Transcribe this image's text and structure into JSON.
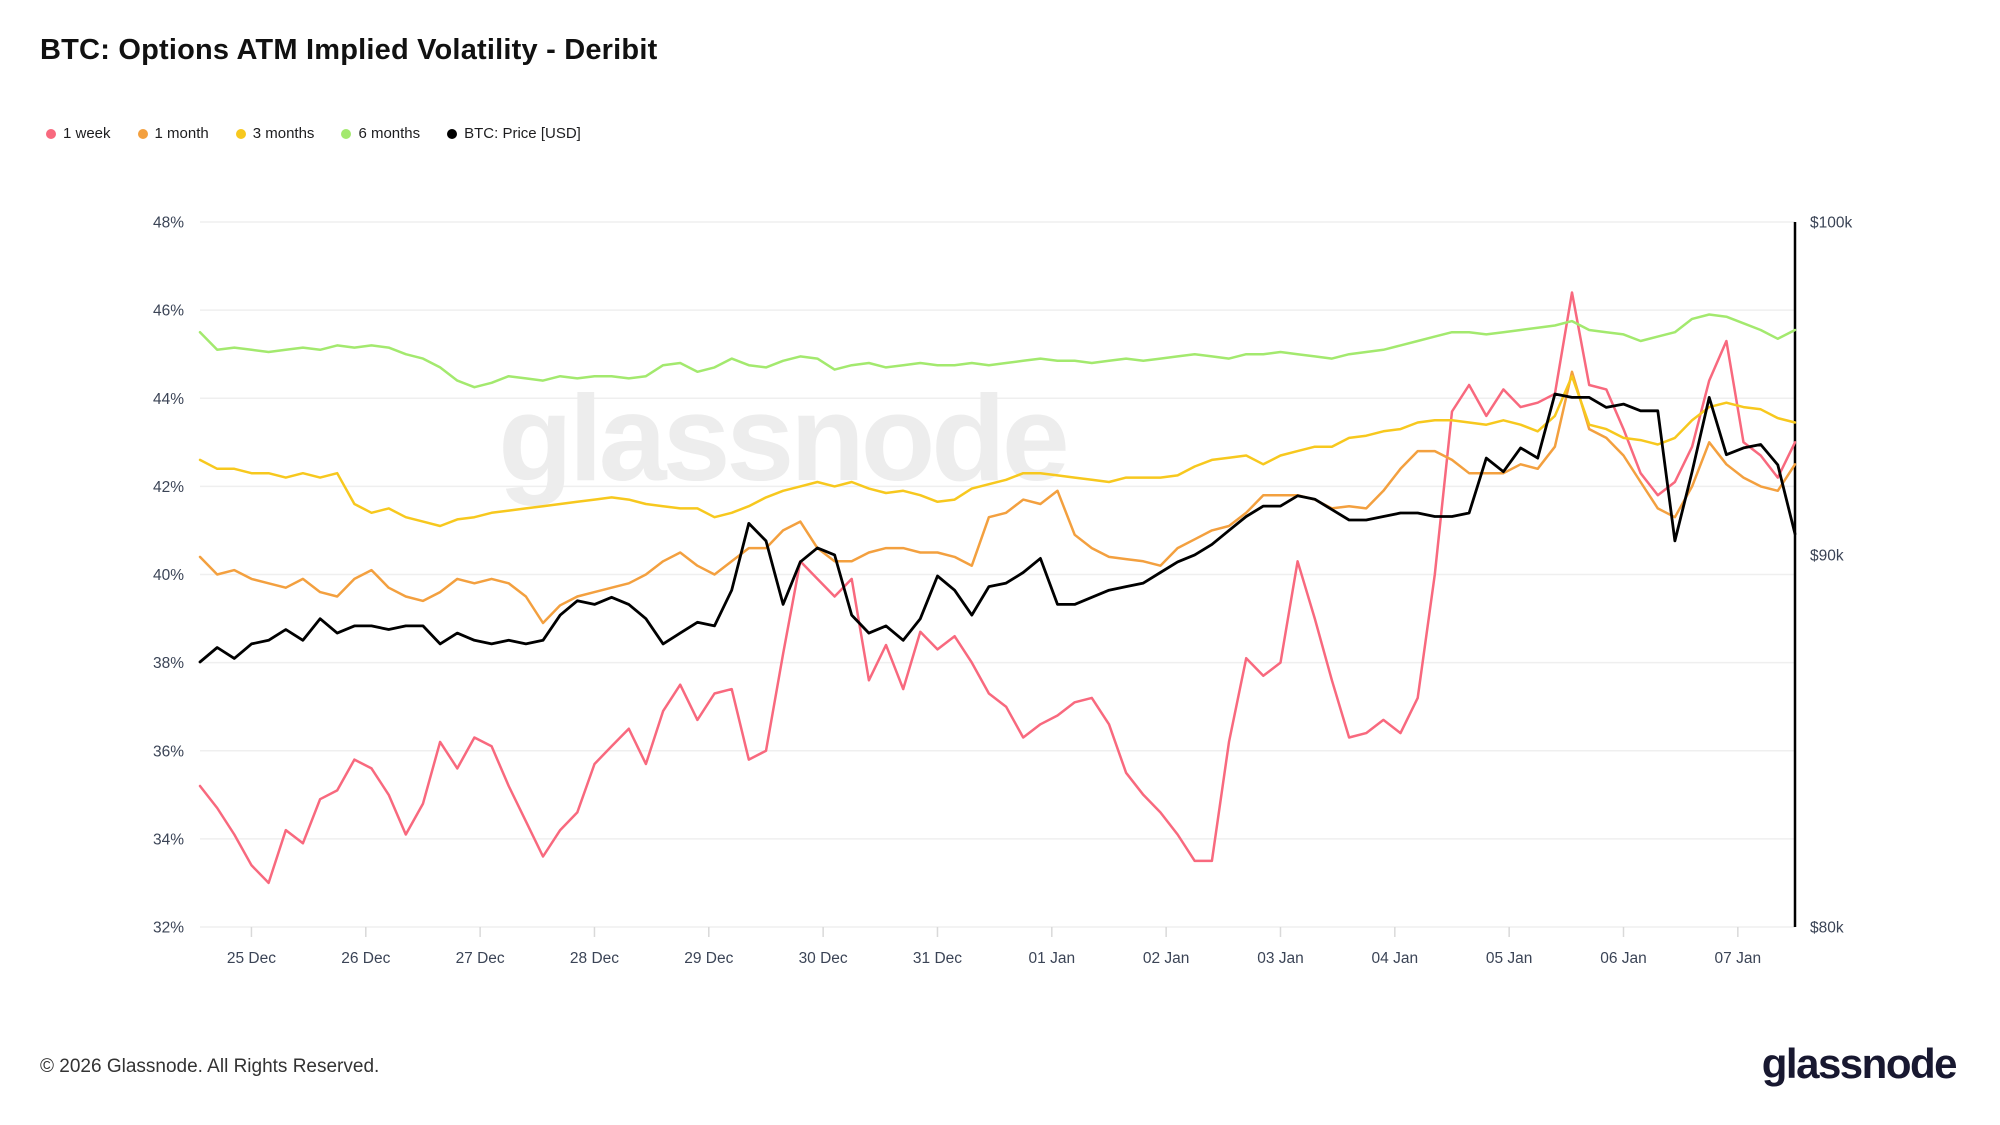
{
  "title": "BTC: Options ATM Implied Volatility - Deribit",
  "watermark": "glassnode",
  "footer": {
    "copyright": "© 2026 Glassnode. All Rights Reserved.",
    "logo_text": "glassnode"
  },
  "legend": [
    {
      "label": "1 week",
      "color": "#F8697E"
    },
    {
      "label": "1 month",
      "color": "#F3A03F"
    },
    {
      "label": "3 months",
      "color": "#F7C81E"
    },
    {
      "label": "6 months",
      "color": "#A3E96E"
    },
    {
      "label": "BTC: Price [USD]",
      "color": "#000000"
    }
  ],
  "chart_data": {
    "type": "line",
    "title": "BTC: Options ATM Implied Volatility - Deribit",
    "grid": true,
    "legend_position": "top-left",
    "x_unit": "days since 25 Dec",
    "x_range": [
      -0.45,
      13.5
    ],
    "x_tick_positions": [
      0,
      1,
      2,
      3,
      4,
      5,
      6,
      7,
      8,
      9,
      10,
      11,
      12,
      13
    ],
    "x_tick_labels": [
      "25 Dec",
      "26 Dec",
      "27 Dec",
      "28 Dec",
      "29 Dec",
      "30 Dec",
      "31 Dec",
      "01 Jan",
      "02 Jan",
      "03 Jan",
      "04 Jan",
      "05 Jan",
      "06 Jan",
      "07 Jan"
    ],
    "left_axis": {
      "min": 32,
      "max": 48,
      "tick_step": 2,
      "tick_suffix": "%"
    },
    "right_axis": {
      "min": 80,
      "max": 100,
      "scale": "log",
      "ticks": [
        {
          "value": 100,
          "label": "$100k"
        },
        {
          "value": 90,
          "label": "$90k"
        },
        {
          "value": 80,
          "label": "$80k"
        }
      ]
    },
    "x": [
      -0.45,
      -0.3,
      -0.15,
      0.0,
      0.15,
      0.3,
      0.45,
      0.6,
      0.75,
      0.9,
      1.05,
      1.2,
      1.35,
      1.5,
      1.65,
      1.8,
      1.95,
      2.1,
      2.25,
      2.4,
      2.55,
      2.7,
      2.85,
      3.0,
      3.15,
      3.3,
      3.45,
      3.6,
      3.75,
      3.9,
      4.05,
      4.2,
      4.35,
      4.5,
      4.65,
      4.8,
      4.95,
      5.1,
      5.25,
      5.4,
      5.55,
      5.7,
      5.85,
      6.0,
      6.15,
      6.3,
      6.45,
      6.6,
      6.75,
      6.9,
      7.05,
      7.2,
      7.35,
      7.5,
      7.65,
      7.8,
      7.95,
      8.1,
      8.25,
      8.4,
      8.55,
      8.7,
      8.85,
      9.0,
      9.15,
      9.3,
      9.45,
      9.6,
      9.75,
      9.9,
      10.05,
      10.2,
      10.35,
      10.5,
      10.65,
      10.8,
      10.95,
      11.1,
      11.25,
      11.4,
      11.55,
      11.7,
      11.85,
      12.0,
      12.15,
      12.3,
      12.45,
      12.6,
      12.75,
      12.9,
      13.05,
      13.2,
      13.35,
      13.5
    ],
    "series": [
      {
        "name": "1 week",
        "axis": "left",
        "unit": "%",
        "color": "#F8697E",
        "values": [
          35.2,
          34.7,
          34.1,
          33.4,
          33.0,
          34.2,
          33.9,
          34.9,
          35.1,
          35.8,
          35.6,
          35.0,
          34.1,
          34.8,
          36.2,
          35.6,
          36.3,
          36.1,
          35.2,
          34.4,
          33.6,
          34.2,
          34.6,
          35.7,
          36.1,
          36.5,
          35.7,
          36.9,
          37.5,
          36.7,
          37.3,
          37.4,
          35.8,
          36.0,
          38.2,
          40.3,
          39.9,
          39.5,
          39.9,
          37.6,
          38.4,
          37.4,
          38.7,
          38.3,
          38.6,
          38.0,
          37.3,
          37.0,
          36.3,
          36.6,
          36.8,
          37.1,
          37.2,
          36.6,
          35.5,
          35.0,
          34.6,
          34.1,
          33.5,
          33.5,
          36.2,
          38.1,
          37.7,
          38.0,
          40.3,
          39.0,
          37.6,
          36.3,
          36.4,
          36.7,
          36.4,
          37.2,
          40.0,
          43.7,
          44.3,
          43.6,
          44.2,
          43.8,
          43.9,
          44.1,
          46.4,
          44.3,
          44.2,
          43.3,
          42.3,
          41.8,
          42.1,
          42.9,
          44.4,
          45.3,
          43.0,
          42.7,
          42.2,
          43.0
        ]
      },
      {
        "name": "1 month",
        "axis": "left",
        "unit": "%",
        "color": "#F3A03F",
        "values": [
          40.4,
          40.0,
          40.1,
          39.9,
          39.8,
          39.7,
          39.9,
          39.6,
          39.5,
          39.9,
          40.1,
          39.7,
          39.5,
          39.4,
          39.6,
          39.9,
          39.8,
          39.9,
          39.8,
          39.5,
          38.9,
          39.3,
          39.5,
          39.6,
          39.7,
          39.8,
          40.0,
          40.3,
          40.5,
          40.2,
          40.0,
          40.3,
          40.6,
          40.6,
          41.0,
          41.2,
          40.6,
          40.3,
          40.3,
          40.5,
          40.6,
          40.6,
          40.5,
          40.5,
          40.4,
          40.2,
          41.3,
          41.4,
          41.7,
          41.6,
          41.9,
          40.9,
          40.6,
          40.4,
          40.35,
          40.3,
          40.2,
          40.6,
          40.8,
          41.0,
          41.1,
          41.4,
          41.8,
          41.8,
          41.8,
          41.7,
          41.5,
          41.55,
          41.5,
          41.9,
          42.4,
          42.8,
          42.8,
          42.6,
          42.3,
          42.3,
          42.3,
          42.5,
          42.4,
          42.9,
          44.6,
          43.3,
          43.1,
          42.7,
          42.1,
          41.5,
          41.3,
          42.0,
          43.0,
          42.5,
          42.2,
          42.0,
          41.9,
          42.5
        ]
      },
      {
        "name": "3 months",
        "axis": "left",
        "unit": "%",
        "color": "#F7C81E",
        "values": [
          42.6,
          42.4,
          42.4,
          42.3,
          42.3,
          42.2,
          42.3,
          42.2,
          42.3,
          41.6,
          41.4,
          41.5,
          41.3,
          41.2,
          41.1,
          41.25,
          41.3,
          41.4,
          41.45,
          41.5,
          41.55,
          41.6,
          41.65,
          41.7,
          41.75,
          41.7,
          41.6,
          41.55,
          41.5,
          41.5,
          41.3,
          41.4,
          41.55,
          41.75,
          41.9,
          42.0,
          42.1,
          42.0,
          42.1,
          41.95,
          41.85,
          41.9,
          41.8,
          41.65,
          41.7,
          41.95,
          42.05,
          42.15,
          42.3,
          42.3,
          42.25,
          42.2,
          42.15,
          42.1,
          42.2,
          42.2,
          42.2,
          42.25,
          42.45,
          42.6,
          42.65,
          42.7,
          42.5,
          42.7,
          42.8,
          42.9,
          42.9,
          43.1,
          43.15,
          43.25,
          43.3,
          43.45,
          43.5,
          43.5,
          43.45,
          43.4,
          43.5,
          43.4,
          43.25,
          43.6,
          44.5,
          43.4,
          43.3,
          43.1,
          43.05,
          42.95,
          43.1,
          43.5,
          43.8,
          43.9,
          43.8,
          43.75,
          43.55,
          43.45
        ]
      },
      {
        "name": "6 months",
        "axis": "left",
        "unit": "%",
        "color": "#A3E96E",
        "values": [
          45.5,
          45.1,
          45.15,
          45.1,
          45.05,
          45.1,
          45.15,
          45.1,
          45.2,
          45.15,
          45.2,
          45.15,
          45.0,
          44.9,
          44.7,
          44.4,
          44.25,
          44.35,
          44.5,
          44.45,
          44.4,
          44.5,
          44.45,
          44.5,
          44.5,
          44.45,
          44.5,
          44.75,
          44.8,
          44.6,
          44.7,
          44.9,
          44.75,
          44.7,
          44.85,
          44.95,
          44.9,
          44.65,
          44.75,
          44.8,
          44.7,
          44.75,
          44.8,
          44.75,
          44.75,
          44.8,
          44.75,
          44.8,
          44.85,
          44.9,
          44.85,
          44.85,
          44.8,
          44.85,
          44.9,
          44.85,
          44.9,
          44.95,
          45.0,
          44.95,
          44.9,
          45.0,
          45.0,
          45.05,
          45.0,
          44.95,
          44.9,
          45.0,
          45.05,
          45.1,
          45.2,
          45.3,
          45.4,
          45.5,
          45.5,
          45.45,
          45.5,
          45.55,
          45.6,
          45.65,
          45.75,
          45.55,
          45.5,
          45.45,
          45.3,
          45.4,
          45.5,
          45.8,
          45.9,
          45.85,
          45.7,
          45.55,
          45.35,
          45.55
        ]
      },
      {
        "name": "BTC: Price [USD]",
        "axis": "right",
        "unit": "$k",
        "color": "#000000",
        "values": [
          87.0,
          87.4,
          87.1,
          87.5,
          87.6,
          87.9,
          87.6,
          88.2,
          87.8,
          88.0,
          88.0,
          87.9,
          88.0,
          88.0,
          87.5,
          87.8,
          87.6,
          87.5,
          87.6,
          87.5,
          87.6,
          88.3,
          88.7,
          88.6,
          88.8,
          88.6,
          88.2,
          87.5,
          87.8,
          88.1,
          88.0,
          89.0,
          90.9,
          90.4,
          88.6,
          89.8,
          90.2,
          90.0,
          88.3,
          87.8,
          88.0,
          87.6,
          88.2,
          89.4,
          89.0,
          88.3,
          89.1,
          89.2,
          89.5,
          89.9,
          88.6,
          88.6,
          88.8,
          89.0,
          89.1,
          89.2,
          89.5,
          89.8,
          90.0,
          90.3,
          90.7,
          91.1,
          91.4,
          91.4,
          91.7,
          91.6,
          91.3,
          91.0,
          91.0,
          91.1,
          91.2,
          91.2,
          91.1,
          91.1,
          91.2,
          92.8,
          92.4,
          93.1,
          92.8,
          94.7,
          94.6,
          94.6,
          94.3,
          94.4,
          94.2,
          94.2,
          90.4,
          92.4,
          94.6,
          92.9,
          93.1,
          93.2,
          92.6,
          90.6
        ]
      }
    ]
  }
}
